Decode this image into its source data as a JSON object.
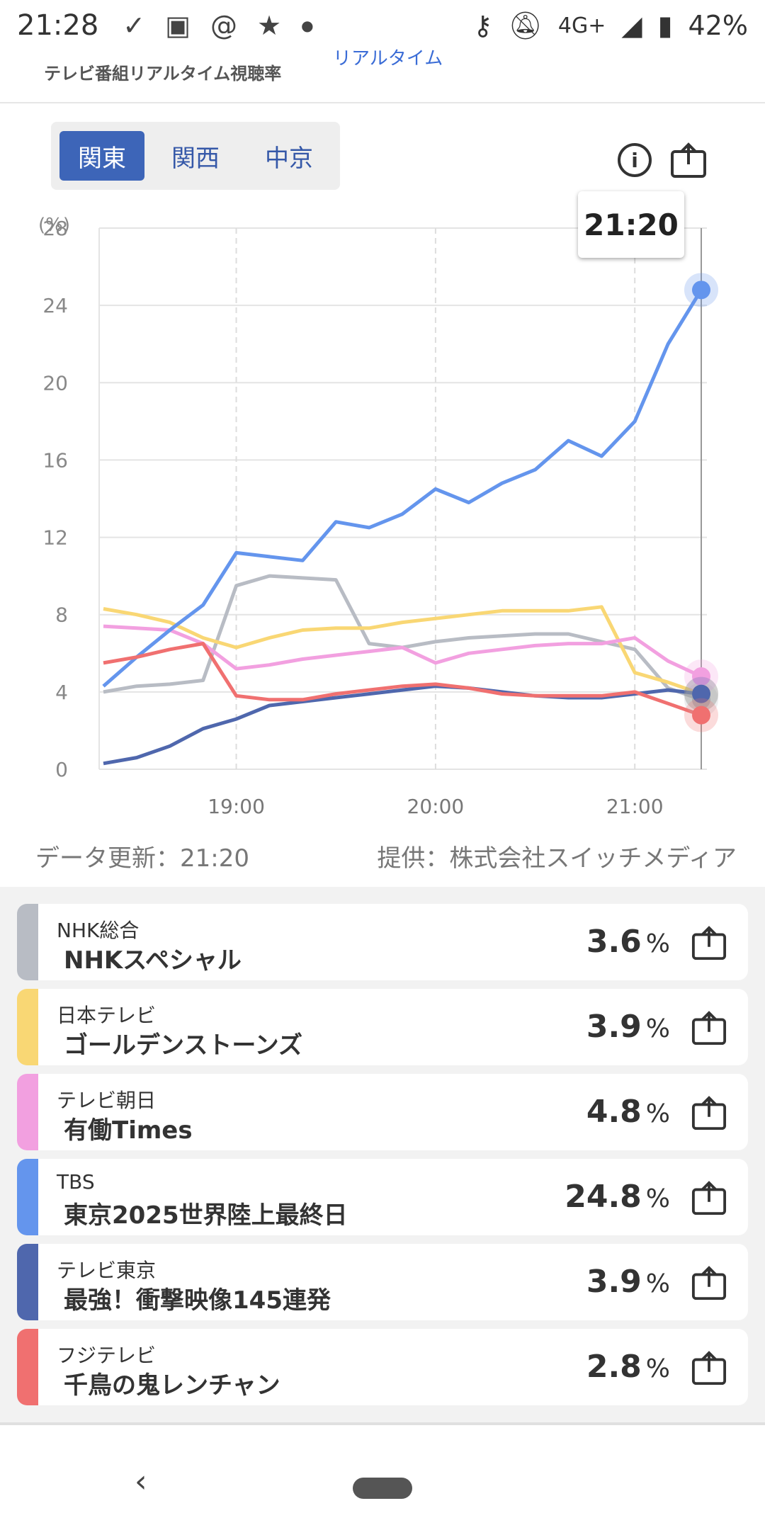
{
  "status": {
    "time": "21:28",
    "network": "4G+",
    "battery": "42%"
  },
  "header": {
    "subtitle": "テレビ番組リアルタイム視聴率",
    "partial": "リアルタイム"
  },
  "regions": [
    {
      "label": "関東",
      "active": true
    },
    {
      "label": "関西",
      "active": false
    },
    {
      "label": "中京",
      "active": false
    }
  ],
  "chart": {
    "tooltip": "21:20",
    "unit": "(%)"
  },
  "footer": {
    "updated": "データ更新：21:20",
    "provider": "提供：株式会社スイッチメディア"
  },
  "channels": [
    {
      "channel": "NHK総合",
      "program": "NHKスペシャル",
      "rating": "3.6",
      "unit": "%",
      "color": "#b8bcc4"
    },
    {
      "channel": "日本テレビ",
      "program": "ゴールデンストーンズ",
      "rating": "3.9",
      "unit": "%",
      "color": "#f9d774"
    },
    {
      "channel": "テレビ朝日",
      "program": "有働Times",
      "rating": "4.8",
      "unit": "%",
      "color": "#f2a0e0"
    },
    {
      "channel": "TBS",
      "program": "東京2025世界陸上最終日",
      "rating": "24.8",
      "unit": "%",
      "color": "#6495ed"
    },
    {
      "channel": "テレビ東京",
      "program": "最強！衝撃映像145連発",
      "rating": "3.9",
      "unit": "%",
      "color": "#4f67ad"
    },
    {
      "channel": "フジテレビ",
      "program": "千鳥の鬼レンチャン",
      "rating": "2.8",
      "unit": "%",
      "color": "#f07070"
    }
  ],
  "chart_data": {
    "type": "line",
    "title": "",
    "xlabel": "",
    "ylabel": "(%)",
    "ylim": [
      0,
      28
    ],
    "yticks": [
      0,
      4,
      8,
      12,
      16,
      20,
      24,
      28
    ],
    "xticks": [
      "19:00",
      "20:00",
      "21:00"
    ],
    "x": [
      "18:20",
      "18:30",
      "18:40",
      "18:50",
      "19:00",
      "19:10",
      "19:20",
      "19:30",
      "19:40",
      "19:50",
      "20:00",
      "20:10",
      "20:20",
      "20:30",
      "20:40",
      "20:50",
      "21:00",
      "21:10",
      "21:20"
    ],
    "series": [
      {
        "name": "NHK総合",
        "color": "#b8bcc4",
        "values": [
          4.0,
          4.3,
          4.4,
          4.6,
          9.5,
          10.0,
          9.9,
          9.8,
          6.5,
          6.3,
          6.6,
          6.8,
          6.9,
          7.0,
          7.0,
          6.6,
          6.2,
          4.2,
          3.6
        ]
      },
      {
        "name": "日本テレビ",
        "color": "#f9d774",
        "values": [
          8.3,
          8.0,
          7.6,
          6.8,
          6.3,
          6.8,
          7.2,
          7.3,
          7.3,
          7.6,
          7.8,
          8.0,
          8.2,
          8.2,
          8.2,
          8.4,
          5.0,
          4.5,
          3.9
        ]
      },
      {
        "name": "テレビ朝日",
        "color": "#f2a0e0",
        "values": [
          7.4,
          7.3,
          7.2,
          6.5,
          5.2,
          5.4,
          5.7,
          5.9,
          6.1,
          6.3,
          5.5,
          6.0,
          6.2,
          6.4,
          6.5,
          6.5,
          6.8,
          5.6,
          4.8
        ]
      },
      {
        "name": "TBS",
        "color": "#6495ed",
        "values": [
          4.3,
          5.8,
          7.2,
          8.5,
          11.2,
          11.0,
          10.8,
          12.8,
          12.5,
          13.2,
          14.5,
          13.8,
          14.8,
          15.5,
          17.0,
          16.2,
          18.0,
          22.0,
          24.8
        ]
      },
      {
        "name": "テレビ東京",
        "color": "#4f67ad",
        "values": [
          0.3,
          0.6,
          1.2,
          2.1,
          2.6,
          3.3,
          3.5,
          3.7,
          3.9,
          4.1,
          4.3,
          4.2,
          4.0,
          3.8,
          3.7,
          3.7,
          3.9,
          4.1,
          3.9
        ]
      },
      {
        "name": "フジテレビ",
        "color": "#f07070",
        "values": [
          5.5,
          5.8,
          6.2,
          6.5,
          3.8,
          3.6,
          3.6,
          3.9,
          4.1,
          4.3,
          4.4,
          4.2,
          3.9,
          3.8,
          3.8,
          3.8,
          4.0,
          3.4,
          2.8
        ]
      }
    ]
  }
}
